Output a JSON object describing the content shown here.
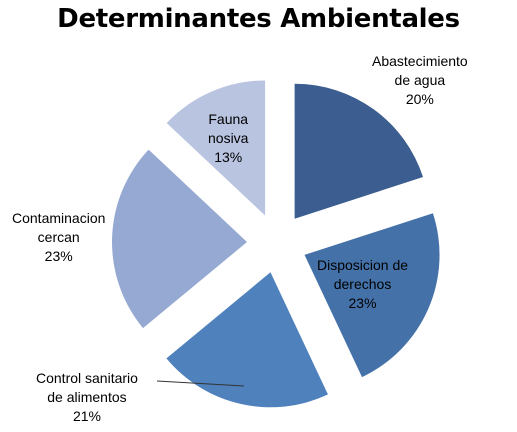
{
  "chart_data": {
    "type": "pie",
    "title": "Determinantes Ambientales",
    "exploded": true,
    "slices": [
      {
        "label_lines": [
          "Abastecimiento",
          "de agua"
        ],
        "percent_label": "20%",
        "value": 20,
        "color": "#3b5d8f"
      },
      {
        "label_lines": [
          "Disposicion de",
          "derechos"
        ],
        "percent_label": "23%",
        "value": 23,
        "color": "#4472a8"
      },
      {
        "label_lines": [
          "Control sanitario",
          "de alimentos"
        ],
        "percent_label": "21%",
        "value": 21,
        "color": "#4f81bd"
      },
      {
        "label_lines": [
          "Contaminacion",
          "cercan"
        ],
        "percent_label": "23%",
        "value": 23,
        "color": "#95a9d2"
      },
      {
        "label_lines": [
          "Fauna",
          "nosiva"
        ],
        "percent_label": "13%",
        "value": 13,
        "color": "#b9c4e1"
      }
    ]
  }
}
